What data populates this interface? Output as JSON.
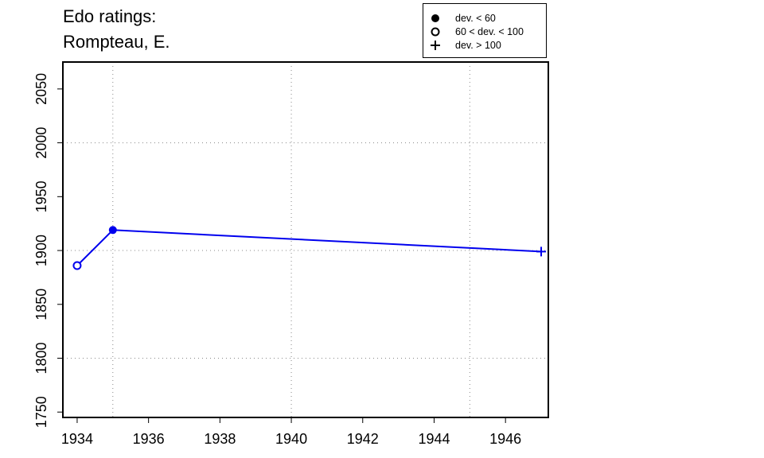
{
  "chart_data": {
    "type": "line",
    "title": [
      "Edo ratings:",
      "Rompteau, E."
    ],
    "xlabel": "",
    "ylabel": "",
    "xlim": [
      1933.6,
      1947.2
    ],
    "ylim": [
      1745,
      2075
    ],
    "x_ticks": [
      1934,
      1936,
      1938,
      1940,
      1942,
      1944,
      1946
    ],
    "y_ticks": [
      1750,
      1800,
      1850,
      1900,
      1950,
      2000,
      2050
    ],
    "x_grid": [
      1935,
      1940,
      1945
    ],
    "y_grid": [
      1800,
      1900,
      2000
    ],
    "grid": true,
    "legend_position": "top-right",
    "legend": [
      {
        "symbol": "filled-circle",
        "label": "dev. < 60"
      },
      {
        "symbol": "open-circle",
        "label": "60 < dev. < 100"
      },
      {
        "symbol": "plus",
        "label": "dev. > 100"
      }
    ],
    "series": [
      {
        "color": "#0000ee",
        "points": [
          {
            "x": 1934,
            "y": 1886,
            "marker": "open-circle"
          },
          {
            "x": 1935,
            "y": 1919,
            "marker": "filled-circle"
          },
          {
            "x": 1947,
            "y": 1899,
            "marker": "plus"
          }
        ]
      }
    ]
  }
}
